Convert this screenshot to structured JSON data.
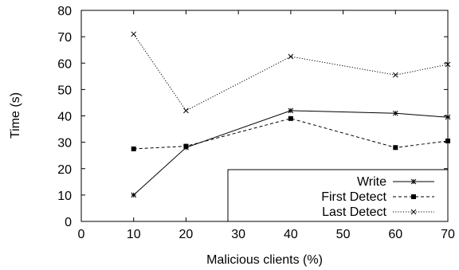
{
  "chart_data": {
    "type": "line",
    "title": "",
    "xlabel": "Malicious clients (%)",
    "ylabel": "Time (s)",
    "xlim": [
      0,
      70
    ],
    "ylim": [
      0,
      80
    ],
    "xticks": [
      0,
      10,
      20,
      30,
      40,
      50,
      60,
      70
    ],
    "yticks": [
      0,
      10,
      20,
      30,
      40,
      50,
      60,
      70,
      80
    ],
    "grid": false,
    "legend_position": "bottom-right",
    "series": [
      {
        "name": "Write",
        "line_style": "solid",
        "marker": "asterisk",
        "x": [
          10,
          20,
          40,
          60,
          70
        ],
        "y": [
          10,
          28,
          42,
          41,
          39.5
        ]
      },
      {
        "name": "First Detect",
        "line_style": "dashed",
        "marker": "filled-square",
        "x": [
          10,
          20,
          40,
          60,
          70
        ],
        "y": [
          27.5,
          28.5,
          39,
          28,
          30.5
        ]
      },
      {
        "name": "Last Detect",
        "line_style": "dotted",
        "marker": "cross",
        "x": [
          10,
          20,
          40,
          60,
          70
        ],
        "y": [
          71,
          42,
          62.5,
          55.5,
          59.5
        ]
      }
    ]
  }
}
